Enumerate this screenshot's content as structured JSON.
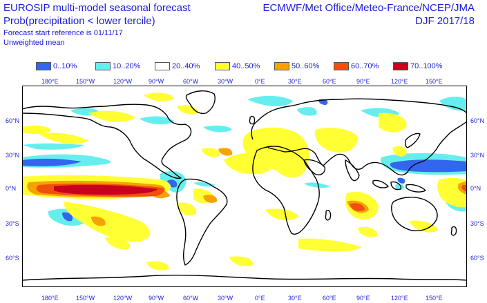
{
  "header": {
    "title_line1": "EUROSIP multi-model seasonal forecast",
    "title_line2": "Prob(precipitation < lower tercile)",
    "forecast_start": "Forecast start reference is 01/11/17",
    "weighting": "Unweighted mean",
    "centres": "ECMWF/Met Office/Meteo-France/NCEP/JMA",
    "season": "DJF 2017/18"
  },
  "legend": [
    {
      "label": "0..10%",
      "color": "#3366ee"
    },
    {
      "label": "10..20%",
      "color": "#66eeee"
    },
    {
      "label": "20..40%",
      "color": "#ffffff"
    },
    {
      "label": "40..50%",
      "color": "#ffff33"
    },
    {
      "label": "50..60%",
      "color": "#f6a300"
    },
    {
      "label": "60..70%",
      "color": "#f04f10"
    },
    {
      "label": "70..100%",
      "color": "#c8001e"
    }
  ],
  "map": {
    "projection": "equirectangular",
    "lon_range": [
      -210,
      180
    ],
    "lat_range": [
      -88,
      88
    ],
    "lon_ticks": [
      "180°E",
      "150°W",
      "120°W",
      "90°W",
      "60°W",
      "30°W",
      "0°E",
      "30°E",
      "60°E",
      "90°E",
      "120°E",
      "150°E"
    ],
    "lat_ticks": [
      "60°N",
      "30°N",
      "0°N",
      "30°S",
      "60°S"
    ]
  }
}
